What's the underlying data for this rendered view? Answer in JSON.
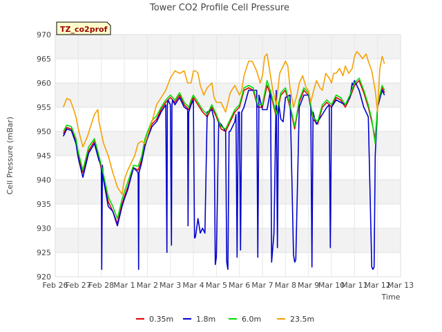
{
  "chart_data": {
    "type": "line",
    "title": "Tower CO2 Profile Cell Pressure",
    "xlabel": "Time",
    "ylabel": "Cell Pressure (mBar)",
    "site_tag": "TZ_co2prof",
    "x_ticks": [
      "Feb 26",
      "Feb 27",
      "Feb 28",
      "Mar 1",
      "Mar 2",
      "Mar 3",
      "Mar 4",
      "Mar 5",
      "Mar 6",
      "Mar 7",
      "Mar 8",
      "Mar 9",
      "Mar 10",
      "Mar 11",
      "Mar 12",
      "Mar 13"
    ],
    "xlim": [
      0,
      15
    ],
    "ylim": [
      920,
      970
    ],
    "y_ticks": [
      920,
      925,
      930,
      935,
      940,
      945,
      950,
      955,
      960,
      965,
      970
    ],
    "grid": true,
    "legend_position": "bottom",
    "series": [
      {
        "name": "0.35m",
        "color": "#dd0000",
        "x": [
          0.35,
          0.5,
          0.7,
          0.9,
          1.0,
          1.2,
          1.45,
          1.7,
          1.9,
          2.1,
          2.3,
          2.5,
          2.7,
          2.9,
          3.0,
          3.15,
          3.4,
          3.6,
          3.75,
          3.9,
          4.0,
          4.2,
          4.4,
          4.6,
          4.8,
          5.0,
          5.2,
          5.4,
          5.6,
          5.8,
          5.9,
          6.0,
          6.2,
          6.4,
          6.6,
          6.8,
          7.0,
          7.2,
          7.4,
          7.6,
          7.8,
          8.0,
          8.2,
          8.4,
          8.6,
          8.8,
          9.0,
          9.2,
          9.4,
          9.6,
          9.8,
          10.0,
          10.2,
          10.4,
          10.6,
          10.8,
          11.0,
          11.2,
          11.4,
          11.6,
          11.8,
          12.0,
          12.2,
          12.4,
          12.6,
          12.8,
          13.0,
          13.2,
          13.4,
          13.6,
          13.75,
          13.9,
          14.0,
          14.2,
          14.3
        ],
        "values": [
          949.5,
          950.8,
          950.5,
          948.0,
          945.0,
          941.5,
          946.0,
          948.0,
          944.5,
          940.0,
          935.5,
          933.5,
          931.0,
          935.0,
          936.5,
          938.5,
          942.5,
          942.0,
          944.0,
          947.5,
          949.0,
          951.5,
          952.5,
          954.5,
          956.0,
          957.0,
          956.0,
          957.5,
          955.5,
          954.5,
          956.0,
          957.0,
          955.5,
          954.0,
          953.0,
          955.0,
          953.0,
          950.5,
          950.0,
          952.0,
          954.0,
          955.0,
          958.5,
          959.0,
          958.5,
          955.0,
          955.0,
          959.5,
          957.0,
          953.0,
          957.5,
          958.5,
          955.0,
          950.5,
          956.0,
          958.5,
          957.5,
          952.5,
          951.5,
          955.0,
          956.0,
          955.0,
          957.0,
          956.5,
          955.0,
          957.0,
          959.5,
          960.5,
          958.0,
          955.0,
          952.0,
          948.5,
          955.0,
          959.0,
          958.0
        ]
      },
      {
        "name": "1.8m",
        "color": "#0000cc",
        "x": [
          0.35,
          0.5,
          0.7,
          0.9,
          1.0,
          1.2,
          1.45,
          1.7,
          1.9,
          2.0,
          2.02,
          2.05,
          2.1,
          2.3,
          2.5,
          2.7,
          2.9,
          3.0,
          3.15,
          3.4,
          3.6,
          3.62,
          3.64,
          3.75,
          3.9,
          4.0,
          4.2,
          4.4,
          4.6,
          4.8,
          4.85,
          4.87,
          4.9,
          5.0,
          5.05,
          5.07,
          5.1,
          5.2,
          5.4,
          5.6,
          5.75,
          5.77,
          5.8,
          5.9,
          6.0,
          6.05,
          6.07,
          6.1,
          6.2,
          6.3,
          6.4,
          6.5,
          6.6,
          6.8,
          6.9,
          6.95,
          7.0,
          7.1,
          7.2,
          7.4,
          7.45,
          7.5,
          7.55,
          7.6,
          7.8,
          7.85,
          7.9,
          7.95,
          8.0,
          8.05,
          8.1,
          8.2,
          8.4,
          8.6,
          8.75,
          8.8,
          8.85,
          9.0,
          9.2,
          9.35,
          9.4,
          9.5,
          9.6,
          9.65,
          9.7,
          9.8,
          9.9,
          10.0,
          10.2,
          10.35,
          10.4,
          10.45,
          10.6,
          10.8,
          11.0,
          11.1,
          11.15,
          11.2,
          11.3,
          11.35,
          11.4,
          11.6,
          11.8,
          11.9,
          11.95,
          12.0,
          12.2,
          12.4,
          12.6,
          12.8,
          12.9,
          12.95,
          13.0,
          13.2,
          13.4,
          13.6,
          13.75,
          13.8,
          13.85,
          13.9,
          14.0,
          14.2,
          14.3
        ],
        "values": [
          949.0,
          950.5,
          950.2,
          947.5,
          944.5,
          940.5,
          945.5,
          947.5,
          944.0,
          943.0,
          921.5,
          943.0,
          940.0,
          934.5,
          933.5,
          930.5,
          934.5,
          936.0,
          938.0,
          942.5,
          941.5,
          921.5,
          941.5,
          943.5,
          947.0,
          948.5,
          951.0,
          952.0,
          954.0,
          955.5,
          925.0,
          955.5,
          956.5,
          955.5,
          926.5,
          955.5,
          956.5,
          955.5,
          957.0,
          955.0,
          954.5,
          930.5,
          954.0,
          955.5,
          956.5,
          928.0,
          928.0,
          928.5,
          932.0,
          929.0,
          930.0,
          929.0,
          954.0,
          954.5,
          952.5,
          922.5,
          924.0,
          952.0,
          951.5,
          950.0,
          923.0,
          921.5,
          950.0,
          950.0,
          952.0,
          953.5,
          924.0,
          954.0,
          954.0,
          925.5,
          954.0,
          955.0,
          958.5,
          958.5,
          958.5,
          924.0,
          957.5,
          954.5,
          954.5,
          958.5,
          923.0,
          929.0,
          958.5,
          926.0,
          956.0,
          952.5,
          952.0,
          957.0,
          957.5,
          924.5,
          923.0,
          923.5,
          955.0,
          957.5,
          957.5,
          955.0,
          922.0,
          954.0,
          952.0,
          951.5,
          952.0,
          953.5,
          955.0,
          955.5,
          926.0,
          955.0,
          956.5,
          956.0,
          955.5,
          957.0,
          960.0,
          959.5,
          960.5,
          958.5,
          955.0,
          953.0,
          922.0,
          921.5,
          922.0,
          945.0,
          955.0,
          958.5,
          957.5
        ]
      },
      {
        "name": "6.0m",
        "color": "#00dd00",
        "x": [
          0.35,
          0.5,
          0.7,
          0.9,
          1.0,
          1.2,
          1.45,
          1.7,
          1.9,
          2.1,
          2.3,
          2.5,
          2.7,
          2.9,
          3.0,
          3.15,
          3.4,
          3.6,
          3.75,
          3.9,
          4.0,
          4.2,
          4.4,
          4.6,
          4.8,
          5.0,
          5.2,
          5.4,
          5.6,
          5.8,
          5.9,
          6.0,
          6.2,
          6.4,
          6.6,
          6.8,
          7.0,
          7.2,
          7.4,
          7.6,
          7.8,
          8.0,
          8.2,
          8.4,
          8.6,
          8.8,
          9.0,
          9.2,
          9.4,
          9.6,
          9.8,
          10.0,
          10.2,
          10.4,
          10.6,
          10.8,
          11.0,
          11.2,
          11.4,
          11.6,
          11.8,
          12.0,
          12.2,
          12.4,
          12.6,
          12.8,
          13.0,
          13.2,
          13.4,
          13.6,
          13.75,
          13.9,
          14.0,
          14.2,
          14.3
        ],
        "values": [
          950.0,
          951.3,
          951.0,
          948.5,
          945.8,
          942.0,
          946.8,
          948.5,
          945.0,
          941.0,
          936.5,
          934.5,
          932.0,
          936.0,
          937.5,
          939.5,
          943.0,
          942.8,
          944.8,
          948.5,
          949.8,
          952.2,
          953.2,
          955.0,
          956.5,
          957.5,
          956.5,
          958.0,
          956.0,
          955.0,
          956.5,
          957.5,
          956.0,
          954.5,
          953.5,
          955.5,
          953.5,
          951.0,
          950.5,
          952.5,
          954.5,
          955.5,
          959.0,
          959.5,
          959.0,
          955.5,
          955.5,
          960.5,
          957.5,
          953.5,
          958.0,
          959.0,
          955.5,
          951.0,
          956.5,
          959.0,
          958.0,
          953.0,
          952.0,
          955.5,
          956.5,
          955.5,
          957.5,
          957.0,
          955.5,
          957.5,
          960.0,
          961.0,
          958.5,
          955.5,
          952.5,
          947.5,
          955.5,
          959.5,
          958.5
        ]
      },
      {
        "name": "23.5m",
        "color": "#f5a000",
        "x": [
          0.35,
          0.5,
          0.65,
          0.8,
          0.9,
          1.0,
          1.2,
          1.4,
          1.5,
          1.7,
          1.85,
          1.9,
          2.1,
          2.3,
          2.5,
          2.7,
          2.9,
          3.0,
          3.15,
          3.3,
          3.45,
          3.6,
          3.75,
          3.9,
          4.0,
          4.2,
          4.4,
          4.6,
          4.8,
          5.0,
          5.2,
          5.4,
          5.6,
          5.75,
          5.9,
          6.0,
          6.1,
          6.2,
          6.3,
          6.45,
          6.6,
          6.8,
          6.9,
          7.0,
          7.2,
          7.4,
          7.6,
          7.8,
          8.0,
          8.1,
          8.2,
          8.4,
          8.55,
          8.6,
          8.75,
          8.9,
          9.0,
          9.1,
          9.2,
          9.3,
          9.45,
          9.6,
          9.75,
          9.9,
          10.0,
          10.1,
          10.2,
          10.35,
          10.5,
          10.6,
          10.75,
          10.9,
          11.0,
          11.1,
          11.2,
          11.35,
          11.5,
          11.6,
          11.75,
          11.9,
          12.0,
          12.1,
          12.2,
          12.35,
          12.5,
          12.6,
          12.75,
          12.9,
          13.0,
          13.1,
          13.2,
          13.35,
          13.5,
          13.6,
          13.75,
          13.9,
          14.0,
          14.1,
          14.2,
          14.3
        ],
        "values": [
          955.0,
          956.8,
          956.5,
          954.5,
          953.0,
          950.5,
          946.8,
          949.0,
          950.5,
          953.5,
          954.5,
          952.0,
          947.5,
          945.0,
          941.5,
          938.5,
          937.0,
          940.0,
          942.0,
          943.5,
          945.0,
          947.5,
          948.0,
          947.5,
          949.0,
          952.0,
          955.5,
          957.0,
          958.5,
          961.0,
          962.5,
          962.0,
          962.5,
          960.0,
          960.0,
          962.5,
          962.5,
          962.0,
          959.5,
          957.5,
          959.0,
          960.0,
          957.0,
          956.0,
          956.0,
          954.0,
          958.0,
          959.5,
          957.5,
          958.5,
          961.5,
          964.5,
          964.5,
          964.0,
          962.5,
          960.0,
          961.5,
          965.5,
          966.0,
          963.0,
          958.5,
          955.5,
          962.0,
          963.5,
          964.5,
          963.5,
          959.0,
          955.0,
          957.5,
          960.0,
          961.5,
          959.0,
          958.5,
          956.0,
          958.0,
          960.5,
          959.0,
          958.5,
          962.0,
          961.0,
          960.0,
          962.0,
          962.0,
          963.0,
          961.5,
          963.5,
          962.0,
          963.0,
          965.5,
          966.5,
          966.0,
          965.0,
          966.0,
          964.5,
          962.5,
          958.5,
          954.0,
          963.0,
          965.5,
          964.0
        ]
      }
    ]
  }
}
